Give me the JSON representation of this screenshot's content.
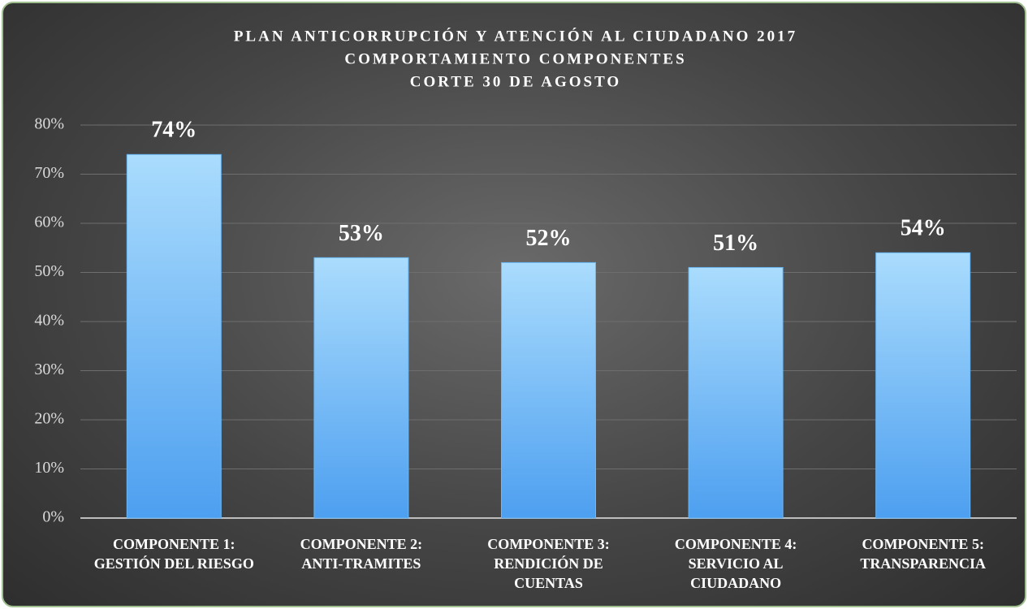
{
  "chart_data": {
    "type": "bar",
    "title": "PLAN ANTICORRUPCIÓN Y ATENCIÓN AL CIUDADANO 2017",
    "subtitle": [
      "COMPORTAMIENTO COMPONENTES",
      "CORTE 30 DE AGOSTO"
    ],
    "categories": [
      "COMPONENTE 1: GESTIÓN DEL RIESGO",
      "COMPONENTE 2: ANTI-TRAMITES",
      "COMPONENTE 3: RENDICIÓN DE CUENTAS",
      "COMPONENTE 4: SERVICIO AL CIUDADANO",
      "COMPONENTE 5: TRANSPARENCIA"
    ],
    "values": [
      74,
      53,
      52,
      51,
      54
    ],
    "value_labels": [
      "74%",
      "53%",
      "52%",
      "51%",
      "54%"
    ],
    "color": "#6ab8f7",
    "ylim": [
      0,
      80
    ],
    "yticks": [
      {
        "value": 0,
        "label": "0%"
      },
      {
        "value": 10,
        "label": "10%"
      },
      {
        "value": 20,
        "label": "20%"
      },
      {
        "value": 30,
        "label": "30%"
      },
      {
        "value": 40,
        "label": "40%"
      },
      {
        "value": 50,
        "label": "50%"
      },
      {
        "value": 60,
        "label": "60%"
      },
      {
        "value": 70,
        "label": "70%"
      },
      {
        "value": 80,
        "label": "80%"
      }
    ],
    "grid": true
  }
}
